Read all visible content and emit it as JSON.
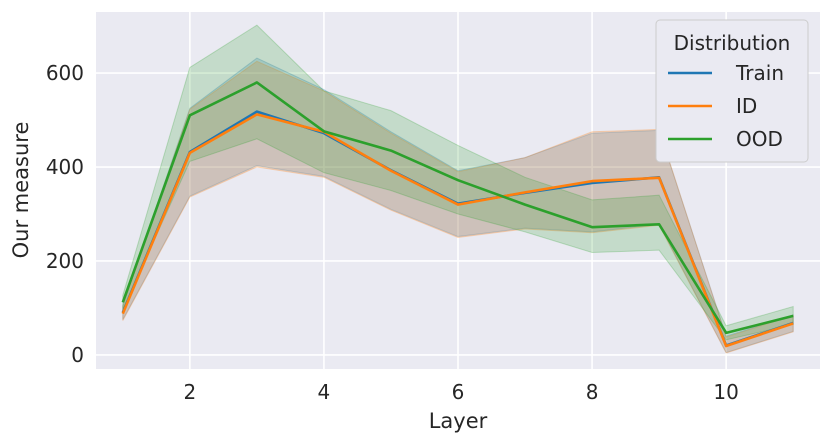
{
  "chart_data": {
    "type": "line",
    "xlabel": "Layer",
    "ylabel": "Our measure",
    "xlim": [
      0.6,
      11.4
    ],
    "ylim": [
      -30,
      730
    ],
    "xticks": [
      2,
      4,
      6,
      8,
      10
    ],
    "yticks": [
      0,
      200,
      400,
      600
    ],
    "grid": true,
    "legend": {
      "title": "Distribution",
      "placement": "top-right"
    },
    "x": [
      1,
      2,
      3,
      4,
      5,
      6,
      7,
      8,
      9,
      10,
      11
    ],
    "series": [
      {
        "name": "Train",
        "color": "#1f77b4",
        "values": [
          90,
          432,
          518,
          472,
          393,
          322,
          345,
          366,
          378,
          20,
          68
        ],
        "lower": [
          75,
          338,
          403,
          380,
          310,
          252,
          270,
          262,
          278,
          5,
          50
        ],
        "upper": [
          105,
          525,
          632,
          565,
          475,
          392,
          420,
          472,
          478,
          40,
          85
        ]
      },
      {
        "name": "ID",
        "color": "#ff7f0e",
        "values": [
          88,
          430,
          512,
          475,
          392,
          320,
          346,
          370,
          377,
          19,
          67
        ],
        "lower": [
          73,
          336,
          400,
          378,
          308,
          250,
          268,
          260,
          276,
          4,
          49
        ],
        "upper": [
          103,
          523,
          625,
          562,
          472,
          390,
          420,
          475,
          480,
          38,
          84
        ]
      },
      {
        "name": "OOD",
        "color": "#2ca02c",
        "values": [
          112,
          510,
          580,
          476,
          435,
          372,
          320,
          272,
          278,
          47,
          83
        ],
        "lower": [
          97,
          412,
          460,
          388,
          350,
          300,
          262,
          218,
          223,
          32,
          65
        ],
        "upper": [
          127,
          612,
          702,
          562,
          520,
          446,
          378,
          330,
          340,
          62,
          103
        ]
      }
    ]
  }
}
